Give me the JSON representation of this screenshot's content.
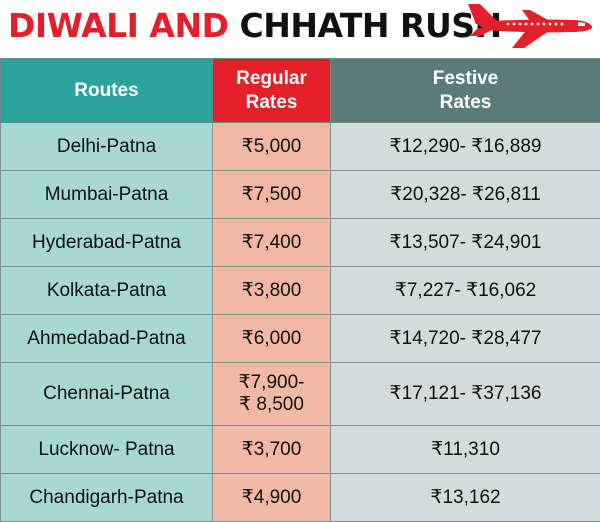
{
  "header": {
    "title_part1": "DIWALI AND",
    "title_part2": "CHHATH RUSH",
    "title_colors": {
      "part1": "#e3202a",
      "part2": "#111111"
    },
    "icon": "airplane-icon"
  },
  "table": {
    "columns": {
      "route": "Routes",
      "regular_line1": "Regular",
      "regular_line2": "Rates",
      "festive_line1": "Festive",
      "festive_line2": "Rates"
    },
    "colors": {
      "routes_header": "#2aa39c",
      "regular_header": "#e3202a",
      "festive_header": "#5d7a7b",
      "routes_cells": "#a9d8d2",
      "regular_cells": "#f2b8a6",
      "festive_cells": "#d2dcda"
    },
    "rows": [
      {
        "route": "Delhi-Patna",
        "regular": "₹5,000",
        "festive": "₹12,290- ₹16,889"
      },
      {
        "route": "Mumbai-Patna",
        "regular": "₹7,500",
        "festive": "₹20,328- ₹26,811"
      },
      {
        "route": "Hyderabad-Patna",
        "regular": "₹7,400",
        "festive": "₹13,507- ₹24,901"
      },
      {
        "route": "Kolkata-Patna",
        "regular": "₹3,800",
        "festive": "₹7,227- ₹16,062"
      },
      {
        "route": "Ahmedabad-Patna",
        "regular": "₹6,000",
        "festive": "₹14,720- ₹28,477"
      },
      {
        "route": "Chennai-Patna",
        "regular_line1": "₹7,900-",
        "regular_line2": "₹ 8,500",
        "festive": "₹17,121- ₹37,136"
      },
      {
        "route": "Lucknow- Patna",
        "regular": "₹3,700",
        "festive": "₹11,310"
      },
      {
        "route": "Chandigarh-Patna",
        "regular": "₹4,900",
        "festive": "₹13,162"
      }
    ]
  }
}
